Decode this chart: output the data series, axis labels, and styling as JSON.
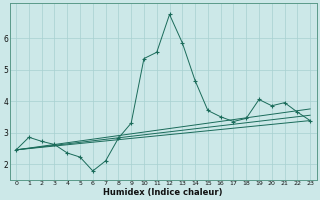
{
  "xlabel": "Humidex (Indice chaleur)",
  "background_color": "#cce8e8",
  "grid_color": "#a8d0d0",
  "line_color": "#1a6b5a",
  "xlim": [
    -0.5,
    23.5
  ],
  "ylim": [
    1.5,
    7.1
  ],
  "xticks": [
    0,
    1,
    2,
    3,
    4,
    5,
    6,
    7,
    8,
    9,
    10,
    11,
    12,
    13,
    14,
    15,
    16,
    17,
    18,
    19,
    20,
    21,
    22,
    23
  ],
  "yticks": [
    2,
    3,
    4,
    5,
    6
  ],
  "lines": [
    {
      "x": [
        0,
        1,
        2,
        3,
        4,
        5,
        6,
        7,
        8,
        9,
        10,
        11,
        12,
        13,
        14,
        15,
        16,
        17,
        18,
        19,
        20,
        21,
        22,
        23
      ],
      "y": [
        2.45,
        2.85,
        2.72,
        2.62,
        2.35,
        2.22,
        1.78,
        2.1,
        2.82,
        3.3,
        5.35,
        5.55,
        6.75,
        5.85,
        4.65,
        3.7,
        3.5,
        3.35,
        3.45,
        4.05,
        3.85,
        3.95,
        3.65,
        3.38
      ],
      "has_markers": true
    },
    {
      "x": [
        0,
        23
      ],
      "y": [
        2.45,
        3.38
      ],
      "has_markers": false
    },
    {
      "x": [
        0,
        23
      ],
      "y": [
        2.45,
        3.55
      ],
      "has_markers": false
    },
    {
      "x": [
        0,
        23
      ],
      "y": [
        2.45,
        3.75
      ],
      "has_markers": false
    }
  ]
}
